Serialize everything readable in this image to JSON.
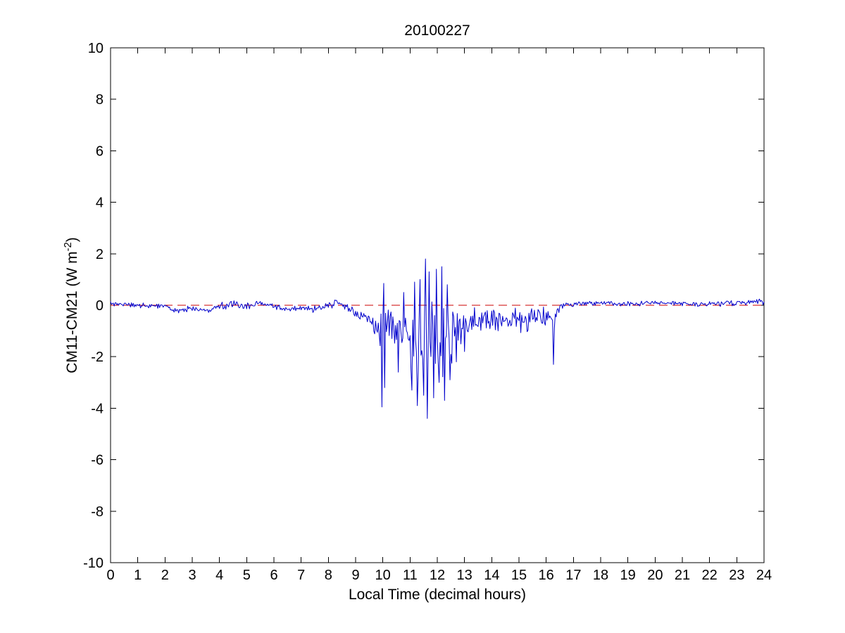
{
  "chart_data": {
    "type": "line",
    "title": "20100227",
    "xlabel": "Local Time (decimal hours)",
    "ylabel": "CM11-CM21 (W m⁻²)",
    "ylabel_parts": {
      "prefix": "CM11-CM21 (W m",
      "sup": "-2",
      "suffix": ")"
    },
    "xlim": [
      0,
      24
    ],
    "ylim": [
      -10,
      10
    ],
    "xticks": [
      0,
      1,
      2,
      3,
      4,
      5,
      6,
      7,
      8,
      9,
      10,
      11,
      12,
      13,
      14,
      15,
      16,
      17,
      18,
      19,
      20,
      21,
      22,
      23,
      24
    ],
    "yticks": [
      -10,
      -8,
      -6,
      -4,
      -2,
      0,
      2,
      4,
      6,
      8,
      10
    ],
    "grid": false,
    "legend": "none",
    "series_color": "#0000CC",
    "reference_line": {
      "y": 0,
      "style": "dashed",
      "color": "#CC0000"
    },
    "sampling": {
      "samples_per_hour": 30,
      "seed": 20100227
    },
    "envelope": [
      [
        0.0,
        0.05,
        0.07
      ],
      [
        1.0,
        0.0,
        0.07
      ],
      [
        2.0,
        -0.05,
        0.08
      ],
      [
        2.5,
        -0.2,
        0.1
      ],
      [
        3.0,
        -0.15,
        0.1
      ],
      [
        3.5,
        -0.2,
        0.08
      ],
      [
        4.0,
        -0.05,
        0.1
      ],
      [
        4.5,
        0.05,
        0.12
      ],
      [
        5.0,
        0.0,
        0.12
      ],
      [
        5.5,
        0.1,
        0.1
      ],
      [
        6.0,
        -0.05,
        0.1
      ],
      [
        6.5,
        -0.15,
        0.08
      ],
      [
        7.0,
        -0.1,
        0.08
      ],
      [
        7.5,
        -0.15,
        0.1
      ],
      [
        8.0,
        -0.05,
        0.12
      ],
      [
        8.3,
        0.15,
        0.12
      ],
      [
        8.7,
        -0.1,
        0.15
      ],
      [
        9.0,
        -0.3,
        0.2
      ],
      [
        9.3,
        -0.4,
        0.25
      ],
      [
        9.6,
        -0.55,
        0.3
      ],
      [
        9.9,
        -1.0,
        0.7
      ],
      [
        10.1,
        -1.2,
        0.8
      ],
      [
        10.4,
        -0.9,
        0.5
      ],
      [
        10.7,
        -0.8,
        0.6
      ],
      [
        11.0,
        -1.3,
        1.0
      ],
      [
        11.3,
        -1.4,
        1.2
      ],
      [
        11.6,
        -1.5,
        1.3
      ],
      [
        12.0,
        -1.4,
        1.2
      ],
      [
        12.4,
        -1.5,
        1.1
      ],
      [
        12.7,
        -1.0,
        0.8
      ],
      [
        13.0,
        -0.8,
        0.6
      ],
      [
        13.3,
        -0.6,
        0.4
      ],
      [
        13.7,
        -0.5,
        0.35
      ],
      [
        14.2,
        -0.6,
        0.4
      ],
      [
        14.7,
        -0.5,
        0.35
      ],
      [
        15.2,
        -0.6,
        0.4
      ],
      [
        15.6,
        -0.4,
        0.3
      ],
      [
        16.0,
        -0.5,
        0.3
      ],
      [
        16.3,
        -0.8,
        0.5
      ],
      [
        16.45,
        -0.1,
        0.15
      ],
      [
        16.7,
        0.05,
        0.1
      ],
      [
        17.0,
        0.05,
        0.08
      ],
      [
        18.0,
        0.1,
        0.08
      ],
      [
        19.0,
        0.05,
        0.08
      ],
      [
        20.0,
        0.1,
        0.08
      ],
      [
        21.0,
        0.05,
        0.08
      ],
      [
        22.0,
        0.05,
        0.09
      ],
      [
        23.0,
        0.1,
        0.09
      ],
      [
        24.0,
        0.15,
        0.1
      ]
    ],
    "spikes": [
      [
        9.97,
        -3.95
      ],
      [
        10.02,
        0.85
      ],
      [
        10.07,
        -3.2
      ],
      [
        10.55,
        -2.6
      ],
      [
        10.75,
        0.5
      ],
      [
        11.05,
        -3.3
      ],
      [
        11.15,
        0.9
      ],
      [
        11.25,
        -3.9
      ],
      [
        11.35,
        1.0
      ],
      [
        11.5,
        -3.5
      ],
      [
        11.58,
        1.8
      ],
      [
        11.62,
        -4.4
      ],
      [
        11.7,
        1.3
      ],
      [
        11.85,
        -3.6
      ],
      [
        11.95,
        1.4
      ],
      [
        12.05,
        -3.0
      ],
      [
        12.15,
        1.5
      ],
      [
        12.25,
        -3.7
      ],
      [
        12.35,
        0.8
      ],
      [
        12.45,
        -2.9
      ],
      [
        12.7,
        -2.2
      ],
      [
        13.0,
        -1.8
      ],
      [
        16.25,
        -2.3
      ]
    ]
  },
  "layout_labels": {
    "tick_font_note": "black inward ticks, boxed axes"
  }
}
